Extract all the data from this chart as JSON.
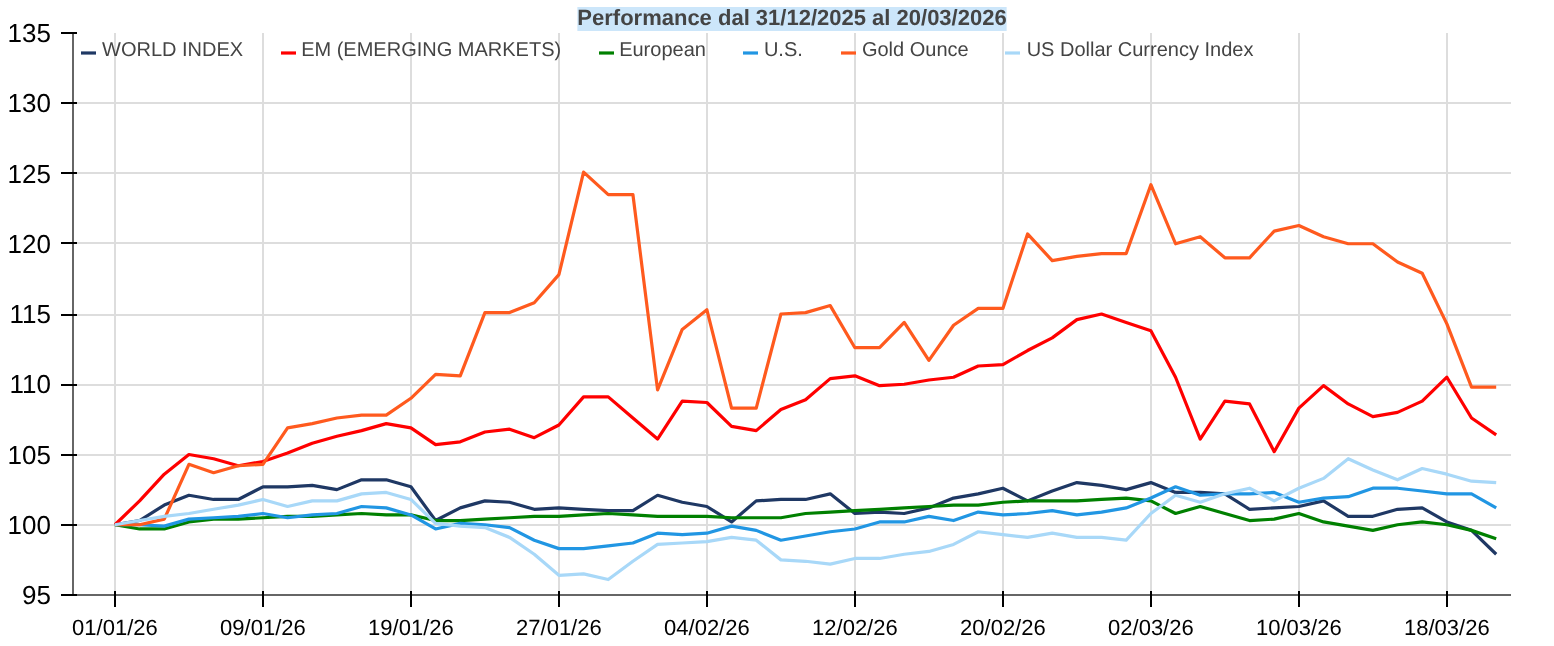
{
  "chart_data": {
    "type": "line",
    "title": "Performance dal 31/12/2025 al 20/03/2026",
    "categories": [
      "01/01/26",
      null,
      null,
      null,
      null,
      null,
      "09/01/26",
      null,
      null,
      null,
      null,
      null,
      "19/01/26",
      null,
      null,
      null,
      null,
      null,
      "27/01/26",
      null,
      null,
      null,
      null,
      null,
      "04/02/26",
      null,
      null,
      null,
      null,
      null,
      "12/02/26",
      null,
      null,
      null,
      null,
      null,
      "20/02/26",
      null,
      null,
      null,
      null,
      null,
      "02/03/26",
      null,
      null,
      null,
      null,
      null,
      "10/03/26",
      null,
      null,
      null,
      null,
      null,
      "18/03/26",
      null,
      null
    ],
    "series": [
      {
        "name": "WORLD INDEX",
        "color": "#1f3864",
        "values": [
          100,
          100.3,
          101.4,
          102.1,
          101.8,
          101.8,
          102.7,
          102.7,
          102.8,
          102.5,
          103.2,
          103.2,
          102.7,
          100.3,
          101.2,
          101.7,
          101.6,
          101.1,
          101.2,
          101.1,
          101,
          101,
          102.1,
          101.6,
          101.3,
          100.2,
          101.7,
          101.8,
          101.8,
          102.2,
          100.8,
          100.9,
          100.8,
          101.2,
          101.9,
          102.2,
          102.6,
          101.7,
          102.4,
          103,
          102.8,
          102.5,
          103,
          102.3,
          102.3,
          102.2,
          101.1,
          101.2,
          101.3,
          101.7,
          100.6,
          100.6,
          101.1,
          101.2,
          100.2,
          99.6,
          97.9
        ]
      },
      {
        "name": "EM (EMERGING MARKETS)",
        "color": "#ff0000",
        "values": [
          100,
          101.7,
          103.6,
          105,
          104.7,
          104.2,
          104.5,
          105.1,
          105.8,
          106.3,
          106.7,
          107.2,
          106.9,
          105.7,
          105.9,
          106.6,
          106.8,
          106.2,
          107.1,
          109.1,
          109.1,
          107.6,
          106.1,
          108.8,
          108.7,
          107,
          106.7,
          108.2,
          108.9,
          110.4,
          110.6,
          109.9,
          110,
          110.3,
          110.5,
          111.3,
          111.4,
          112.4,
          113.3,
          114.6,
          115,
          114.4,
          113.8,
          110.5,
          106.1,
          108.8,
          108.6,
          105.2,
          108.3,
          109.9,
          108.6,
          107.7,
          108,
          108.8,
          110.5,
          107.6,
          106.4
        ]
      },
      {
        "name": "European",
        "color": "#008000",
        "values": [
          100,
          99.7,
          99.7,
          100.2,
          100.4,
          100.4,
          100.5,
          100.6,
          100.6,
          100.7,
          100.8,
          100.7,
          100.7,
          100.3,
          100.3,
          100.4,
          100.5,
          100.6,
          100.6,
          100.7,
          100.8,
          100.7,
          100.6,
          100.6,
          100.6,
          100.5,
          100.5,
          100.5,
          100.8,
          100.9,
          101,
          101.1,
          101.2,
          101.3,
          101.4,
          101.4,
          101.6,
          101.7,
          101.7,
          101.7,
          101.8,
          101.9,
          101.7,
          100.8,
          101.3,
          100.8,
          100.3,
          100.4,
          100.8,
          100.2,
          99.9,
          99.6,
          100,
          100.2,
          100,
          99.6,
          99
        ]
      },
      {
        "name": "U.S.",
        "color": "#2196e3",
        "values": [
          100,
          100,
          99.9,
          100.4,
          100.5,
          100.6,
          100.8,
          100.5,
          100.7,
          100.8,
          101.3,
          101.2,
          100.7,
          99.7,
          100.1,
          100,
          99.8,
          98.9,
          98.3,
          98.3,
          98.5,
          98.7,
          99.4,
          99.3,
          99.4,
          99.9,
          99.6,
          98.9,
          99.2,
          99.5,
          99.7,
          100.2,
          100.2,
          100.6,
          100.3,
          100.9,
          100.7,
          100.8,
          101,
          100.7,
          100.9,
          101.2,
          101.9,
          102.7,
          102.1,
          102.2,
          102.2,
          102.3,
          101.6,
          101.9,
          102,
          102.6,
          102.6,
          102.4,
          102.2,
          102.2,
          101.2
        ]
      },
      {
        "name": "Gold Ounce",
        "color": "#ff5a1e",
        "values": [
          100,
          100,
          100.4,
          104.3,
          103.7,
          104.2,
          104.3,
          106.9,
          107.2,
          107.6,
          107.8,
          107.8,
          109,
          110.7,
          110.6,
          115.1,
          115.1,
          115.8,
          117.8,
          125.1,
          123.5,
          123.5,
          109.6,
          113.9,
          115.3,
          108.3,
          108.3,
          115,
          115.1,
          115.6,
          112.6,
          112.6,
          114.4,
          111.7,
          114.2,
          115.4,
          115.4,
          120.7,
          118.8,
          119.1,
          119.3,
          119.3,
          124.2,
          120,
          120.5,
          119,
          119,
          120.9,
          121.3,
          120.5,
          120,
          120,
          118.7,
          117.9,
          114.3,
          109.8,
          109.8
        ]
      },
      {
        "name": "US Dollar Currency Index",
        "color": "#a8d8f8",
        "values": [
          100,
          100.3,
          100.6,
          100.8,
          101.1,
          101.4,
          101.8,
          101.3,
          101.7,
          101.7,
          102.2,
          102.3,
          101.8,
          100.1,
          99.9,
          99.8,
          99.1,
          97.9,
          96.4,
          96.5,
          96.1,
          97.4,
          98.6,
          98.7,
          98.8,
          99.1,
          98.9,
          97.5,
          97.4,
          97.2,
          97.6,
          97.6,
          97.9,
          98.1,
          98.6,
          99.5,
          99.3,
          99.1,
          99.4,
          99.1,
          99.1,
          98.9,
          100.8,
          102.1,
          101.6,
          102.2,
          102.6,
          101.7,
          102.6,
          103.3,
          104.7,
          103.9,
          103.2,
          104,
          103.6,
          103.1,
          103
        ]
      }
    ],
    "ylim": [
      95,
      135
    ],
    "yticks": [
      95,
      100,
      105,
      110,
      115,
      120,
      125,
      130,
      135
    ],
    "grid": true,
    "legend": "top",
    "line_style": "solid"
  }
}
